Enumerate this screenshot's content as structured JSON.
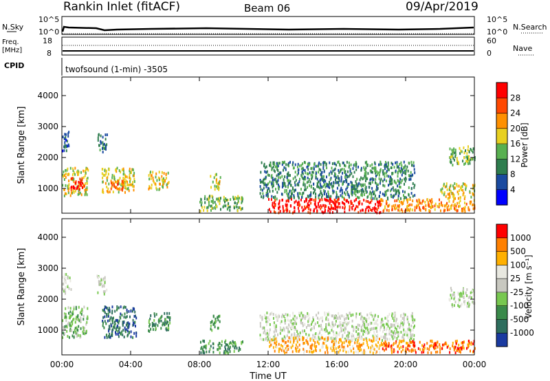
{
  "header": {
    "title": "Rankin Inlet (fitACF)",
    "beam": "Beam 06",
    "date": "09/Apr/2019"
  },
  "top_panels": {
    "nsky_label": "N.Sky",
    "nsky_ticks": [
      "10^5",
      "10^0"
    ],
    "nsearch_label": "N.Search",
    "nsearch_ticks": [
      "10^5",
      "10^0"
    ],
    "freq_label_1": "Freq.",
    "freq_label_2": "[MHz]",
    "freq_ticks": [
      "18",
      "8"
    ],
    "nave_label": "Nave",
    "nave_ticks": [
      "60",
      "0"
    ],
    "cpid_label": "CPID",
    "cpid_text": "twofsound (1-min) -3505"
  },
  "chart_data": [
    {
      "type": "heatmap",
      "name": "power",
      "ylabel": "Slant Range [km]",
      "ylim": [
        200,
        4600
      ],
      "yticks": [
        "4000",
        "3000",
        "2000",
        "1000"
      ],
      "colorbar_label": "Power [dB]",
      "colorbar_ticks": [
        "28",
        "24",
        "20",
        "16",
        "12",
        "8",
        "4"
      ],
      "colors": [
        "#0000ff",
        "#1a4aa0",
        "#2e7d4e",
        "#58b050",
        "#e8d020",
        "#ff9000",
        "#ff4800",
        "#ff0000"
      ],
      "regions": [
        {
          "t0": 0.0,
          "t1": 0.4,
          "r0": 2200,
          "r1": 2900,
          "level": 1
        },
        {
          "t0": 0.0,
          "t1": 1.5,
          "r0": 800,
          "r1": 1700,
          "level": 4
        },
        {
          "t0": 0.5,
          "t1": 1.3,
          "r0": 1000,
          "r1": 1400,
          "level": 7
        },
        {
          "t0": 2.0,
          "t1": 2.6,
          "r0": 2200,
          "r1": 2800,
          "level": 2
        },
        {
          "t0": 2.3,
          "t1": 4.2,
          "r0": 900,
          "r1": 1700,
          "level": 4
        },
        {
          "t0": 2.8,
          "t1": 3.6,
          "r0": 1000,
          "r1": 1300,
          "level": 6
        },
        {
          "t0": 5.0,
          "t1": 6.2,
          "r0": 1000,
          "r1": 1600,
          "level": 4
        },
        {
          "t0": 8.6,
          "t1": 9.2,
          "r0": 1000,
          "r1": 1500,
          "level": 4
        },
        {
          "t0": 8.0,
          "t1": 10.5,
          "r0": 300,
          "r1": 800,
          "level": 3
        },
        {
          "t0": 11.5,
          "t1": 20.5,
          "r0": 700,
          "r1": 1900,
          "level": 2
        },
        {
          "t0": 12.0,
          "t1": 18.5,
          "r0": 250,
          "r1": 700,
          "level": 7
        },
        {
          "t0": 18.5,
          "t1": 24.0,
          "r0": 300,
          "r1": 700,
          "level": 5
        },
        {
          "t0": 22.0,
          "t1": 24.0,
          "r0": 700,
          "r1": 1200,
          "level": 4
        },
        {
          "t0": 22.5,
          "t1": 24.0,
          "r0": 1800,
          "r1": 2400,
          "level": 3
        }
      ]
    },
    {
      "type": "heatmap",
      "name": "velocity",
      "ylabel": "Slant Range [km]",
      "ylim": [
        200,
        4600
      ],
      "yticks": [
        "4000",
        "3000",
        "2000",
        "1000"
      ],
      "xlabel": "Time UT",
      "xticks": [
        "00:00",
        "04:00",
        "08:00",
        "12:00",
        "16:00",
        "20:00",
        "00:00"
      ],
      "xlim": [
        0,
        24
      ],
      "colorbar_label": "Velocity [m s⁻¹]",
      "colorbar_ticks": [
        "1000",
        "500",
        "100",
        "25",
        "-25",
        "-100",
        "-500",
        "-1000"
      ],
      "colors": [
        "#1a3aa0",
        "#2e6e5e",
        "#3a8a4a",
        "#78c850",
        "#c8c8c0",
        "#e8e8e0",
        "#ffb000",
        "#ff8000",
        "#ff0000"
      ],
      "regions": [
        {
          "t0": 0.0,
          "t1": 0.5,
          "r0": 2200,
          "r1": 2900,
          "level": 4
        },
        {
          "t0": 0.0,
          "t1": 1.5,
          "r0": 800,
          "r1": 1800,
          "level": 3
        },
        {
          "t0": 2.0,
          "t1": 2.6,
          "r0": 2200,
          "r1": 2800,
          "level": 4
        },
        {
          "t0": 2.3,
          "t1": 4.3,
          "r0": 800,
          "r1": 1800,
          "level": 1
        },
        {
          "t0": 5.0,
          "t1": 6.3,
          "r0": 1000,
          "r1": 1600,
          "level": 2
        },
        {
          "t0": 8.6,
          "t1": 9.2,
          "r0": 1000,
          "r1": 1500,
          "level": 2
        },
        {
          "t0": 8.0,
          "t1": 10.5,
          "r0": 300,
          "r1": 700,
          "level": 2
        },
        {
          "t0": 11.5,
          "t1": 20.5,
          "r0": 700,
          "r1": 1600,
          "level": 4
        },
        {
          "t0": 12.0,
          "t1": 18.5,
          "r0": 300,
          "r1": 800,
          "level": 6
        },
        {
          "t0": 18.5,
          "t1": 24.0,
          "r0": 300,
          "r1": 700,
          "level": 7
        },
        {
          "t0": 22.5,
          "t1": 24.0,
          "r0": 1800,
          "r1": 2400,
          "level": 4
        }
      ]
    }
  ]
}
